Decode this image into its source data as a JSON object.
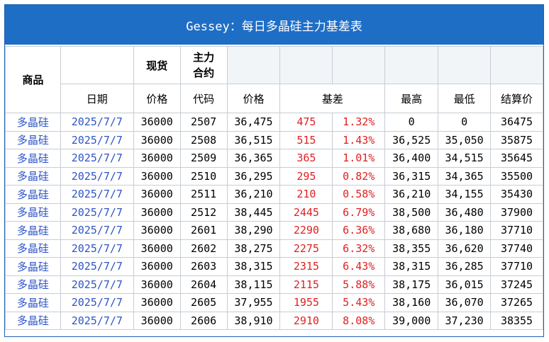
{
  "title": "Gessey：每日多晶硅主力基差表",
  "header_top": {
    "product": "商品",
    "spot": "现货",
    "main_contract_line1": "主力",
    "main_contract_line2": "合约"
  },
  "header_sub": {
    "date": "日期",
    "spot_price": "价格",
    "code": "代码",
    "price": "价格",
    "basis": "基差",
    "high": "最高",
    "low": "最低",
    "settle": "结算价"
  },
  "rows": [
    {
      "product": "多晶硅",
      "date": "2025/7/7",
      "spot": "36000",
      "code": "2507",
      "price": "36,475",
      "basis": "475",
      "basis_pct": "1.32%",
      "high": "0",
      "low": "0",
      "settle": "36475"
    },
    {
      "product": "多晶硅",
      "date": "2025/7/7",
      "spot": "36000",
      "code": "2508",
      "price": "36,515",
      "basis": "515",
      "basis_pct": "1.43%",
      "high": "36,525",
      "low": "35,050",
      "settle": "35875"
    },
    {
      "product": "多晶硅",
      "date": "2025/7/7",
      "spot": "36000",
      "code": "2509",
      "price": "36,365",
      "basis": "365",
      "basis_pct": "1.01%",
      "high": "36,400",
      "low": "34,515",
      "settle": "35645"
    },
    {
      "product": "多晶硅",
      "date": "2025/7/7",
      "spot": "36000",
      "code": "2510",
      "price": "36,295",
      "basis": "295",
      "basis_pct": "0.82%",
      "high": "36,315",
      "low": "34,365",
      "settle": "35500"
    },
    {
      "product": "多晶硅",
      "date": "2025/7/7",
      "spot": "36000",
      "code": "2511",
      "price": "36,210",
      "basis": "210",
      "basis_pct": "0.58%",
      "high": "36,210",
      "low": "34,155",
      "settle": "35430"
    },
    {
      "product": "多晶硅",
      "date": "2025/7/7",
      "spot": "36000",
      "code": "2512",
      "price": "38,445",
      "basis": "2445",
      "basis_pct": "6.79%",
      "high": "38,500",
      "low": "36,480",
      "settle": "37900"
    },
    {
      "product": "多晶硅",
      "date": "2025/7/7",
      "spot": "36000",
      "code": "2601",
      "price": "38,290",
      "basis": "2290",
      "basis_pct": "6.36%",
      "high": "38,680",
      "low": "36,180",
      "settle": "37710"
    },
    {
      "product": "多晶硅",
      "date": "2025/7/7",
      "spot": "36000",
      "code": "2602",
      "price": "38,275",
      "basis": "2275",
      "basis_pct": "6.32%",
      "high": "38,355",
      "low": "36,620",
      "settle": "37740"
    },
    {
      "product": "多晶硅",
      "date": "2025/7/7",
      "spot": "36000",
      "code": "2603",
      "price": "38,315",
      "basis": "2315",
      "basis_pct": "6.43%",
      "high": "38,315",
      "low": "36,285",
      "settle": "37710"
    },
    {
      "product": "多晶硅",
      "date": "2025/7/7",
      "spot": "36000",
      "code": "2604",
      "price": "38,115",
      "basis": "2115",
      "basis_pct": "5.88%",
      "high": "38,175",
      "low": "36,015",
      "settle": "37245"
    },
    {
      "product": "多晶硅",
      "date": "2025/7/7",
      "spot": "36000",
      "code": "2605",
      "price": "37,955",
      "basis": "1955",
      "basis_pct": "5.43%",
      "high": "38,160",
      "low": "36,070",
      "settle": "37265"
    },
    {
      "product": "多晶硅",
      "date": "2025/7/7",
      "spot": "36000",
      "code": "2606",
      "price": "38,910",
      "basis": "2910",
      "basis_pct": "8.08%",
      "high": "39,000",
      "low": "37,230",
      "settle": "38355"
    }
  ],
  "colors": {
    "title_bg": "#1e6ec6",
    "title_text": "#ffffff",
    "product_text": "#2e54c7",
    "date_text": "#2e54c7",
    "basis_text": "#e02020",
    "grid_line": "#c7cdd4"
  }
}
